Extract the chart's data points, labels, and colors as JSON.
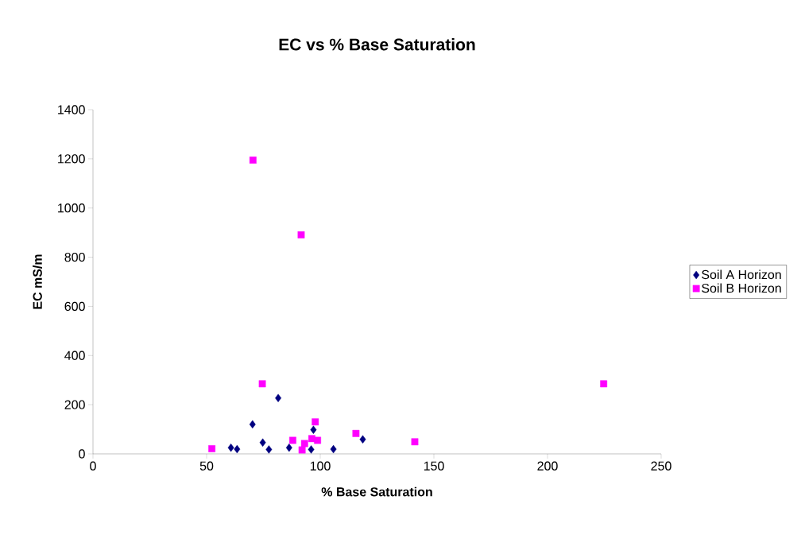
{
  "chart_data": {
    "type": "scatter",
    "title": "EC vs % Base Saturation",
    "xlabel": "% Base Saturation",
    "ylabel": "EC   mS/m",
    "xlim": [
      0,
      250
    ],
    "xticks": [
      0,
      50,
      100,
      150,
      200,
      250
    ],
    "ylim": [
      0,
      1400
    ],
    "yticks": [
      0,
      200,
      400,
      600,
      800,
      1000,
      1200,
      1400
    ],
    "legend": "right",
    "grid": false,
    "series": [
      {
        "name": "Soil A Horizon",
        "color": "#000080",
        "marker": "diamond",
        "x": [
          60.7,
          63.4,
          70.2,
          74.7,
          77.4,
          81.5,
          86.3,
          96.0,
          97.0,
          105.8,
          118.7
        ],
        "values": [
          25,
          19,
          120,
          46,
          18,
          227,
          25,
          18,
          98,
          19,
          59
        ]
      },
      {
        "name": "Soil B Horizon",
        "color": "#ff00ff",
        "marker": "square",
        "x": [
          52.3,
          70.4,
          74.5,
          87.9,
          91.6,
          92.0,
          93.1,
          96.3,
          97.8,
          98.8,
          115.7,
          141.6,
          224.7
        ],
        "values": [
          21,
          1195,
          285,
          55,
          891,
          16,
          42,
          62,
          130,
          55,
          83,
          49,
          285
        ]
      }
    ]
  }
}
